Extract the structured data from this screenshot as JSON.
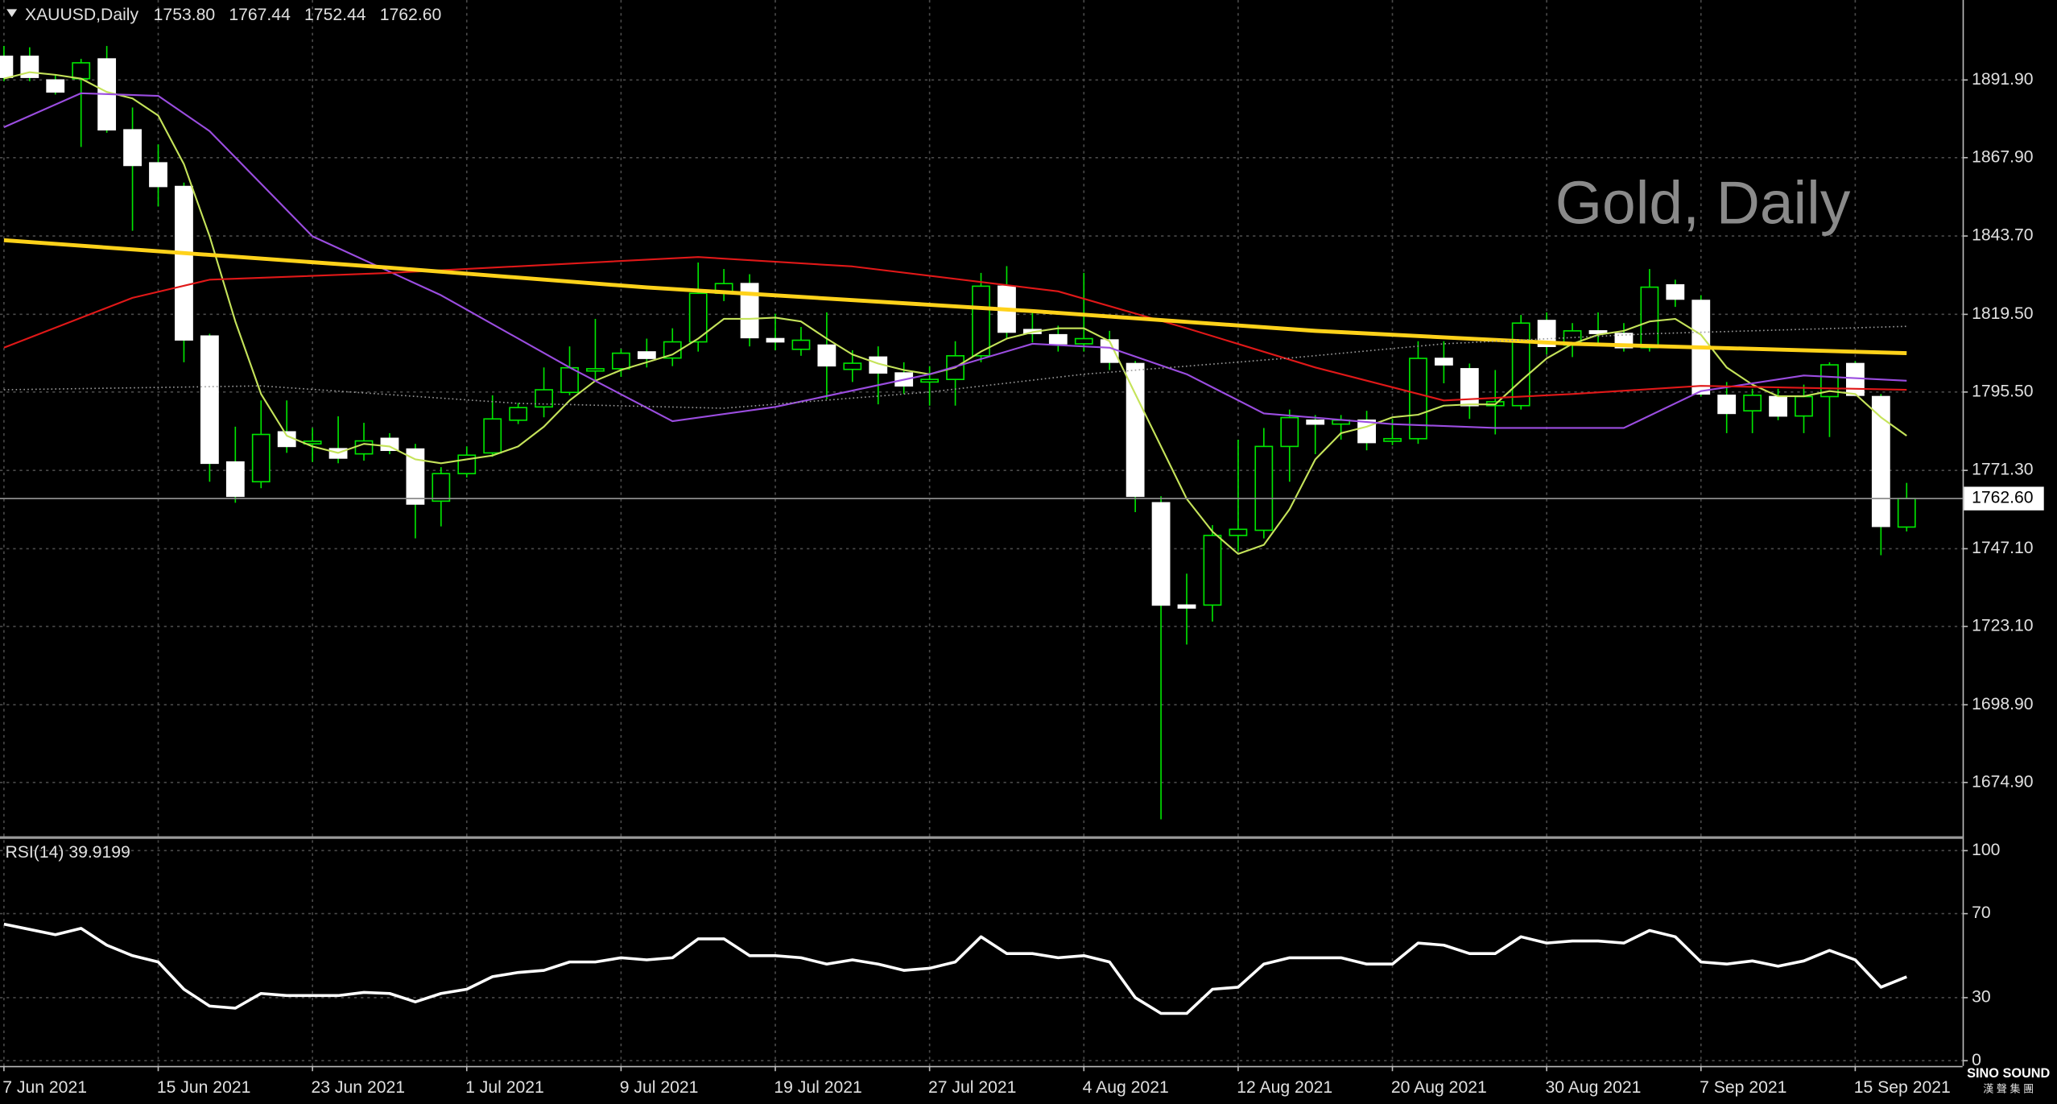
{
  "chart_data": [
    {
      "type": "candlestick",
      "title": "XAUUSD,Daily",
      "header_values": [
        {
          "value": 1753.8,
          "label": "1753.80"
        },
        {
          "value": 1767.44,
          "label": "1767.44"
        },
        {
          "value": 1752.44,
          "label": "1752.44"
        },
        {
          "value": 1762.6,
          "label": "1762.60"
        }
      ],
      "watermark": "Gold, Daily",
      "categories": [
        "7 Jun 2021",
        null,
        null,
        null,
        null,
        null,
        "15 Jun 2021",
        null,
        null,
        null,
        null,
        null,
        "23 Jun 2021",
        null,
        null,
        null,
        null,
        null,
        "1 Jul 2021",
        null,
        null,
        null,
        null,
        null,
        "9 Jul 2021",
        null,
        null,
        null,
        null,
        null,
        "19 Jul 2021",
        null,
        null,
        null,
        null,
        null,
        "27 Jul 2021",
        null,
        null,
        null,
        null,
        null,
        "4 Aug 2021",
        null,
        null,
        null,
        null,
        null,
        "12 Aug 2021",
        null,
        null,
        null,
        null,
        null,
        "20 Aug 2021",
        null,
        null,
        null,
        null,
        null,
        "30 Aug 2021",
        null,
        null,
        null,
        null,
        null,
        "7 Sep 2021",
        null,
        null,
        null,
        null,
        null,
        "15 Sep 2021",
        null,
        null
      ],
      "open": [
        1899.2,
        1899.2,
        1891.9,
        1892.3,
        1898.4,
        1876.5,
        1866.3,
        1859.0,
        1812.8,
        1773.9,
        1767.8,
        1783.2,
        1779.5,
        1778.0,
        1776.4,
        1781.2,
        1777.9,
        1761.8,
        1770.3,
        1776.7,
        1786.8,
        1790.9,
        1795.4,
        1802.0,
        1802.7,
        1807.9,
        1806.0,
        1811.0,
        1826.0,
        1829.0,
        1812.0,
        1808.7,
        1810.0,
        1802.5,
        1806.3,
        1801.4,
        1798.6,
        1799.4,
        1806.7,
        1828.2,
        1814.8,
        1813.2,
        1810.4,
        1811.6,
        1804.3,
        1761.3,
        1729.7,
        1729.7,
        1751.2,
        1752.8,
        1778.7,
        1786.8,
        1785.6,
        1786.8,
        1780.3,
        1781.1,
        1805.9,
        1802.7,
        1791.3,
        1791.3,
        1817.6,
        1810.0,
        1814.4,
        1813.6,
        1809.2,
        1828.6,
        1823.8,
        1794.5,
        1789.7,
        1794.1,
        1788.1,
        1794.1,
        1804.3,
        1794.1,
        1753.8
      ],
      "high": [
        1902.4,
        1902.0,
        1893.5,
        1898.4,
        1902.4,
        1883.4,
        1872.0,
        1860.2,
        1813.5,
        1784.8,
        1792.9,
        1792.9,
        1784.4,
        1788.0,
        1786.0,
        1782.8,
        1779.5,
        1772.3,
        1778.7,
        1794.5,
        1792.1,
        1803.1,
        1809.6,
        1818.1,
        1808.8,
        1812.0,
        1815.2,
        1835.5,
        1833.5,
        1831.9,
        1819.7,
        1815.6,
        1820.1,
        1808.4,
        1809.6,
        1804.7,
        1803.5,
        1811.2,
        1832.3,
        1834.4,
        1820.1,
        1816.0,
        1832.3,
        1814.4,
        1805.1,
        1763.3,
        1739.4,
        1754.4,
        1780.8,
        1784.4,
        1790.1,
        1788.4,
        1788.4,
        1789.7,
        1787.2,
        1811.2,
        1811.2,
        1804.3,
        1802.3,
        1819.3,
        1820.1,
        1816.8,
        1820.1,
        1816.8,
        1833.5,
        1830.2,
        1825.4,
        1798.6,
        1796.5,
        1796.5,
        1797.8,
        1804.7,
        1805.1,
        1794.9,
        1767.44
      ],
      "low": [
        1891.5,
        1891.5,
        1887.4,
        1871.2,
        1875.6,
        1845.3,
        1852.8,
        1804.7,
        1767.8,
        1761.3,
        1765.8,
        1776.7,
        1773.9,
        1773.5,
        1774.3,
        1776.3,
        1750.3,
        1754.0,
        1769.1,
        1775.5,
        1785.6,
        1787.7,
        1794.5,
        1798.6,
        1800.2,
        1803.1,
        1803.5,
        1808.0,
        1823.6,
        1809.6,
        1808.4,
        1806.7,
        1793.3,
        1798.6,
        1791.7,
        1794.9,
        1791.3,
        1791.3,
        1804.7,
        1812.0,
        1810.8,
        1808.0,
        1808.0,
        1802.3,
        1758.4,
        1663.5,
        1717.5,
        1724.6,
        1746.3,
        1750.3,
        1767.8,
        1776.3,
        1780.8,
        1777.5,
        1779.1,
        1779.5,
        1798.2,
        1787.2,
        1782.4,
        1790.1,
        1807.1,
        1806.3,
        1810.0,
        1808.0,
        1808.0,
        1821.8,
        1794.1,
        1782.8,
        1782.8,
        1786.8,
        1782.8,
        1781.6,
        1794.5,
        1745.1,
        1752.44
      ],
      "close": [
        1892.7,
        1892.7,
        1888.2,
        1897.2,
        1876.5,
        1865.5,
        1859.0,
        1811.6,
        1773.5,
        1763.3,
        1782.4,
        1778.7,
        1780.3,
        1775.1,
        1780.4,
        1777.5,
        1760.9,
        1770.3,
        1776.0,
        1787.2,
        1790.7,
        1796.2,
        1803.0,
        1802.7,
        1807.5,
        1805.9,
        1811.0,
        1826.0,
        1829.0,
        1812.3,
        1811.0,
        1811.5,
        1803.6,
        1804.4,
        1801.4,
        1797.4,
        1799.4,
        1806.7,
        1828.2,
        1814.0,
        1813.6,
        1810.4,
        1812.0,
        1804.7,
        1763.3,
        1729.7,
        1728.8,
        1751.2,
        1753.1,
        1778.7,
        1787.6,
        1785.6,
        1786.8,
        1779.9,
        1781.1,
        1805.9,
        1803.9,
        1791.3,
        1792.5,
        1816.8,
        1809.6,
        1814.4,
        1813.6,
        1809.2,
        1827.9,
        1824.2,
        1794.9,
        1788.9,
        1794.5,
        1788.1,
        1794.1,
        1803.9,
        1794.5,
        1754.0,
        1762.6
      ],
      "up_color": "#000000",
      "down_color": "#ffffff",
      "wick_color": "#00e600",
      "series": [
        {
          "color": "#c5e35a",
          "width": 1.3,
          "values": [
            1892.3,
            1894.3,
            1893.5,
            1892.3,
            1888.2,
            1886.2,
            1880.9,
            1865.9,
            1843.6,
            1817.3,
            1794.9,
            1782.0,
            1778.7,
            1776.7,
            1779.5,
            1778.7,
            1774.7,
            1773.5,
            1774.7,
            1775.9,
            1778.7,
            1784.8,
            1792.9,
            1799.0,
            1802.3,
            1804.7,
            1807.1,
            1812.0,
            1818.1,
            1818.1,
            1818.5,
            1817.3,
            1812.0,
            1807.1,
            1804.3,
            1802.3,
            1801.0,
            1803.1,
            1808.0,
            1812.0,
            1814.0,
            1815.2,
            1815.2,
            1811.2,
            1794.9,
            1778.7,
            1762.5,
            1752.4,
            1745.5,
            1748.3,
            1759.3,
            1774.7,
            1782.8,
            1784.8,
            1787.7,
            1788.5,
            1791.3,
            1791.7,
            1791.7,
            1799.0,
            1805.9,
            1810.4,
            1813.2,
            1814.4,
            1817.3,
            1818.1,
            1813.2,
            1803.1,
            1797.8,
            1794.2,
            1794.2,
            1795.8,
            1794.9,
            1787.7,
            1782.0
          ]
        },
        {
          "color": "#9b4de0",
          "width": 1.3,
          "x": [
            0,
            3,
            6,
            8,
            12,
            17,
            22,
            26,
            30,
            36,
            40,
            43,
            46,
            49,
            54,
            58,
            63,
            66,
            70,
            74
          ],
          "values": [
            1877.3,
            1887.8,
            1887.0,
            1876.1,
            1843.6,
            1825.4,
            1803.1,
            1786.5,
            1790.9,
            1801.0,
            1810.4,
            1809.2,
            1801.0,
            1788.9,
            1785.6,
            1784.4,
            1784.4,
            1795.8,
            1800.6,
            1799.0
          ]
        },
        {
          "color": "#e01818",
          "width": 1.3,
          "x": [
            0,
            5,
            8,
            15,
            27,
            33,
            41,
            46,
            51,
            56,
            61,
            66,
            74
          ],
          "values": [
            1809.2,
            1824.6,
            1830.2,
            1832.3,
            1837.2,
            1834.3,
            1826.6,
            1815.2,
            1803.1,
            1792.9,
            1794.9,
            1797.4,
            1796.2
          ]
        },
        {
          "color": "#ffd21a",
          "width": 3,
          "x": [
            0,
            15,
            25,
            40,
            51,
            61,
            74
          ],
          "values": [
            1842.4,
            1833.9,
            1827.8,
            1820.5,
            1814.4,
            1810.4,
            1807.5
          ]
        },
        {
          "color": "#9a9a9a",
          "width": 1,
          "dashed": true,
          "x": [
            0,
            10,
            20,
            28,
            36,
            42,
            50,
            56,
            64,
            74
          ],
          "values": [
            1796.2,
            1797.4,
            1792.0,
            1790.5,
            1795.5,
            1801.0,
            1806.0,
            1810.4,
            1813.5,
            1815.8
          ]
        }
      ],
      "last_price": {
        "value": 1762.6,
        "label": "1762.60"
      },
      "ylim": [
        1658.3,
        1916.6
      ],
      "yticks": [
        {
          "value": 1891.9,
          "label": "1891.90"
        },
        {
          "value": 1867.9,
          "label": "1867.90"
        },
        {
          "value": 1843.7,
          "label": "1843.70"
        },
        {
          "value": 1819.5,
          "label": "1819.50"
        },
        {
          "value": 1795.5,
          "label": "1795.50"
        },
        {
          "value": 1771.3,
          "label": "1771.30"
        },
        {
          "value": 1747.1,
          "label": "1747.10"
        },
        {
          "value": 1723.1,
          "label": "1723.10"
        },
        {
          "value": 1698.9,
          "label": "1698.90"
        },
        {
          "value": 1674.9,
          "label": "1674.90"
        }
      ],
      "grid": true
    },
    {
      "type": "line",
      "title": "RSI(14) 39.9199",
      "color": "#ffffff",
      "values": [
        65,
        62.5,
        60,
        63,
        55,
        50,
        47,
        34,
        26,
        25,
        32,
        31,
        31,
        31,
        32.5,
        32,
        28,
        32,
        34,
        40,
        42,
        43,
        47,
        47,
        49,
        48,
        49,
        58,
        58,
        50,
        50,
        49,
        46,
        48,
        46,
        43,
        44,
        47,
        59,
        51,
        51,
        49,
        50,
        47,
        30,
        22.5,
        22.5,
        34,
        35,
        46,
        49,
        49,
        49,
        46,
        46,
        56,
        55,
        51,
        51,
        59,
        56,
        57,
        57,
        56,
        62,
        59,
        47,
        46,
        47.5,
        45,
        47.5,
        52.5,
        48,
        35,
        39.9199
      ],
      "ylim": [
        -2.5,
        105
      ],
      "yticks": [
        100,
        70,
        30,
        0
      ],
      "grid": true
    }
  ],
  "branding": {
    "name": "SINO SOUND",
    "subtitle": "漢 聲 集 團"
  }
}
